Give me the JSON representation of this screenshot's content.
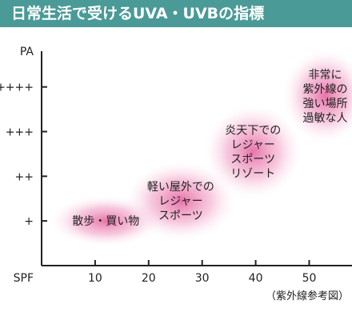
{
  "title": "日常生活で受けるUVA・UVBの指標",
  "colors": {
    "title_bar": "#4a9a98",
    "title_text": "#ffffff",
    "axis": "#222222",
    "bubble_center": "#e35b9a",
    "bubble_edge": "#fbe3ee"
  },
  "chart_data": {
    "type": "scatter",
    "title": "日常生活で受けるUVA・UVBの指標",
    "xlabel": "SPF",
    "ylabel": "PA",
    "x_ticks": [
      10,
      20,
      30,
      40,
      50
    ],
    "y_ticks": [
      "+",
      "++",
      "+++",
      "++++"
    ],
    "xlim": [
      0,
      58
    ],
    "ylim": [
      0,
      4.8
    ],
    "grid": false,
    "note": "（紫外線参考図）",
    "points": [
      {
        "lines": [
          "散歩・買い物"
        ],
        "x": 12,
        "y": 1.0
      },
      {
        "lines": [
          "軽い屋外での",
          "レジャー",
          "スポーツ"
        ],
        "x": 26,
        "y": 1.45
      },
      {
        "lines": [
          "炎天下での",
          "レジャー",
          "スポーツ",
          "リゾート"
        ],
        "x": 39.5,
        "y": 2.55
      },
      {
        "lines": [
          "非常に",
          "紫外線の",
          "強い場所",
          "過敏な人"
        ],
        "x": 53,
        "y": 3.8
      }
    ]
  }
}
